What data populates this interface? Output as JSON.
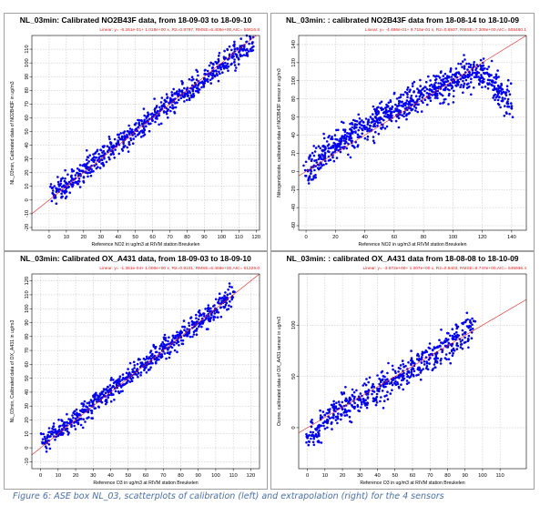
{
  "caption": "Figure 6: ASE box NL_03, scatterplots of calibration (left) and extrapolation (right) for the 4 sensors",
  "colors": {
    "points": "#0000ee",
    "regression": "#e02020",
    "grid": "#bbbbbb"
  },
  "chart_data": [
    {
      "type": "scatter",
      "title": "NL_03min: Calibrated NO2B43F data, from 18-09-03 to 18-09-10",
      "regression_label": "Linear: y= -6.261e-01+ 1.018e+00 x, R2=0.8797, RMSE=6.405e+00,AIC= 56816.8",
      "xlabel": "Reference NO2 in ug/m3 at RIVM station Breukelen",
      "ylabel": "NL_03min, Calibrated data of NO2B43F in ug/m3",
      "xlim": [
        -10,
        122
      ],
      "ylim": [
        -22,
        120
      ],
      "xticks": [
        0,
        10,
        20,
        30,
        40,
        50,
        60,
        70,
        80,
        90,
        100,
        110,
        120
      ],
      "yticks": [
        -20,
        -10,
        0,
        10,
        20,
        30,
        40,
        50,
        60,
        70,
        80,
        90,
        100,
        110
      ],
      "grid": true,
      "series": [
        {
          "x": [
            2,
            5,
            8,
            10,
            14,
            18,
            22,
            26,
            30,
            35,
            40,
            45,
            50,
            55,
            60,
            65,
            70,
            75,
            80,
            85,
            90,
            95,
            100,
            106,
            113,
            118
          ],
          "y": [
            5,
            8,
            10,
            12,
            15,
            19,
            24,
            28,
            32,
            37,
            42,
            46,
            51,
            56,
            61,
            66,
            71,
            76,
            80,
            84,
            88,
            94,
            99,
            104,
            110,
            115
          ]
        }
      ],
      "spread": 8
    },
    {
      "type": "scatter",
      "title": "NL_03min: : calibrated NO2B43F data from 18-08-14 to 18-10-09",
      "regression_label": "Linear: y= -4.466e-01+ 9.715e-01 x, R2=0.6937, RMSE=7.309e+00,AIC= 508460.1",
      "xlabel": "Reference NO2 in ug/m3 at RIVM station Breukelen",
      "ylabel": "Nitrogendioxide, calibrated data of NO2B43F sensor in ug/m3",
      "xlim": [
        -5,
        150
      ],
      "ylim": [
        -65,
        150
      ],
      "xticks": [
        0,
        20,
        40,
        60,
        80,
        100,
        120,
        140
      ],
      "yticks": [
        -60,
        -40,
        -20,
        0,
        20,
        40,
        60,
        80,
        100,
        120,
        140
      ],
      "grid": true,
      "series": [
        {
          "x": [
            0,
            5,
            10,
            15,
            20,
            30,
            40,
            50,
            60,
            70,
            80,
            90,
            100,
            110,
            120,
            140
          ],
          "y": [
            -5,
            5,
            15,
            22,
            30,
            38,
            48,
            57,
            66,
            74,
            84,
            92,
            98,
            105,
            112,
            72
          ]
        }
      ],
      "spread": 16
    },
    {
      "type": "scatter",
      "title": "NL_03min: Calibrated OX_A431 data, from 18-09-03 to 18-09-10",
      "regression_label": "Linear: y= -1.351e-04+ 1.000e+00 x, R2=0.9101, RMSE=6.458e+00,AIC= 61229.0",
      "xlabel": "Reference O3 in ug/m3 at RIVM station Breukelen",
      "ylabel": "NL_03min, Calibrated data of OX_A431 in ug/m3",
      "xlim": [
        -5,
        125
      ],
      "ylim": [
        -15,
        125
      ],
      "xticks": [
        0,
        10,
        20,
        30,
        40,
        50,
        60,
        70,
        80,
        90,
        100,
        110,
        120
      ],
      "yticks": [
        -10,
        0,
        10,
        20,
        30,
        40,
        50,
        60,
        70,
        80,
        90,
        100,
        110,
        120
      ],
      "grid": true,
      "series": [
        {
          "x": [
            1,
            5,
            10,
            15,
            20,
            25,
            30,
            35,
            40,
            45,
            50,
            55,
            60,
            65,
            70,
            75,
            80,
            85,
            90,
            95,
            100,
            105,
            110
          ],
          "y": [
            4,
            8,
            12,
            16,
            21,
            26,
            31,
            36,
            41,
            46,
            51,
            56,
            61,
            66,
            71,
            76,
            80,
            85,
            90,
            95,
            100,
            105,
            112
          ]
        }
      ],
      "spread": 7
    },
    {
      "type": "scatter",
      "title": "NL_03min: : calibrated OX_A431 data from 18-08-08 to 18-10-09",
      "regression_label": "Linear: y= -3.673e+00+ 1.007e+00 x, R2=0.8403, RMSE=8.747e+00,AIC= 545936.4",
      "xlabel": "Reference O3 in ug/m3 at RIVM station Breukelen",
      "ylabel": "Ozone, calibrated data of OX_A431 sensor in ug/m3",
      "xlim": [
        -5,
        125
      ],
      "ylim": [
        -40,
        150
      ],
      "xticks": [
        0,
        10,
        20,
        30,
        40,
        50,
        60,
        70,
        80,
        90,
        100,
        110
      ],
      "yticks": [
        0,
        50,
        100
      ],
      "grid": true,
      "series": [
        {
          "x": [
            0,
            5,
            10,
            15,
            20,
            30,
            40,
            50,
            60,
            70,
            80,
            90,
            95
          ],
          "y": [
            -10,
            -2,
            6,
            12,
            18,
            28,
            38,
            48,
            58,
            68,
            80,
            92,
            104
          ]
        }
      ],
      "spread": 14
    }
  ]
}
